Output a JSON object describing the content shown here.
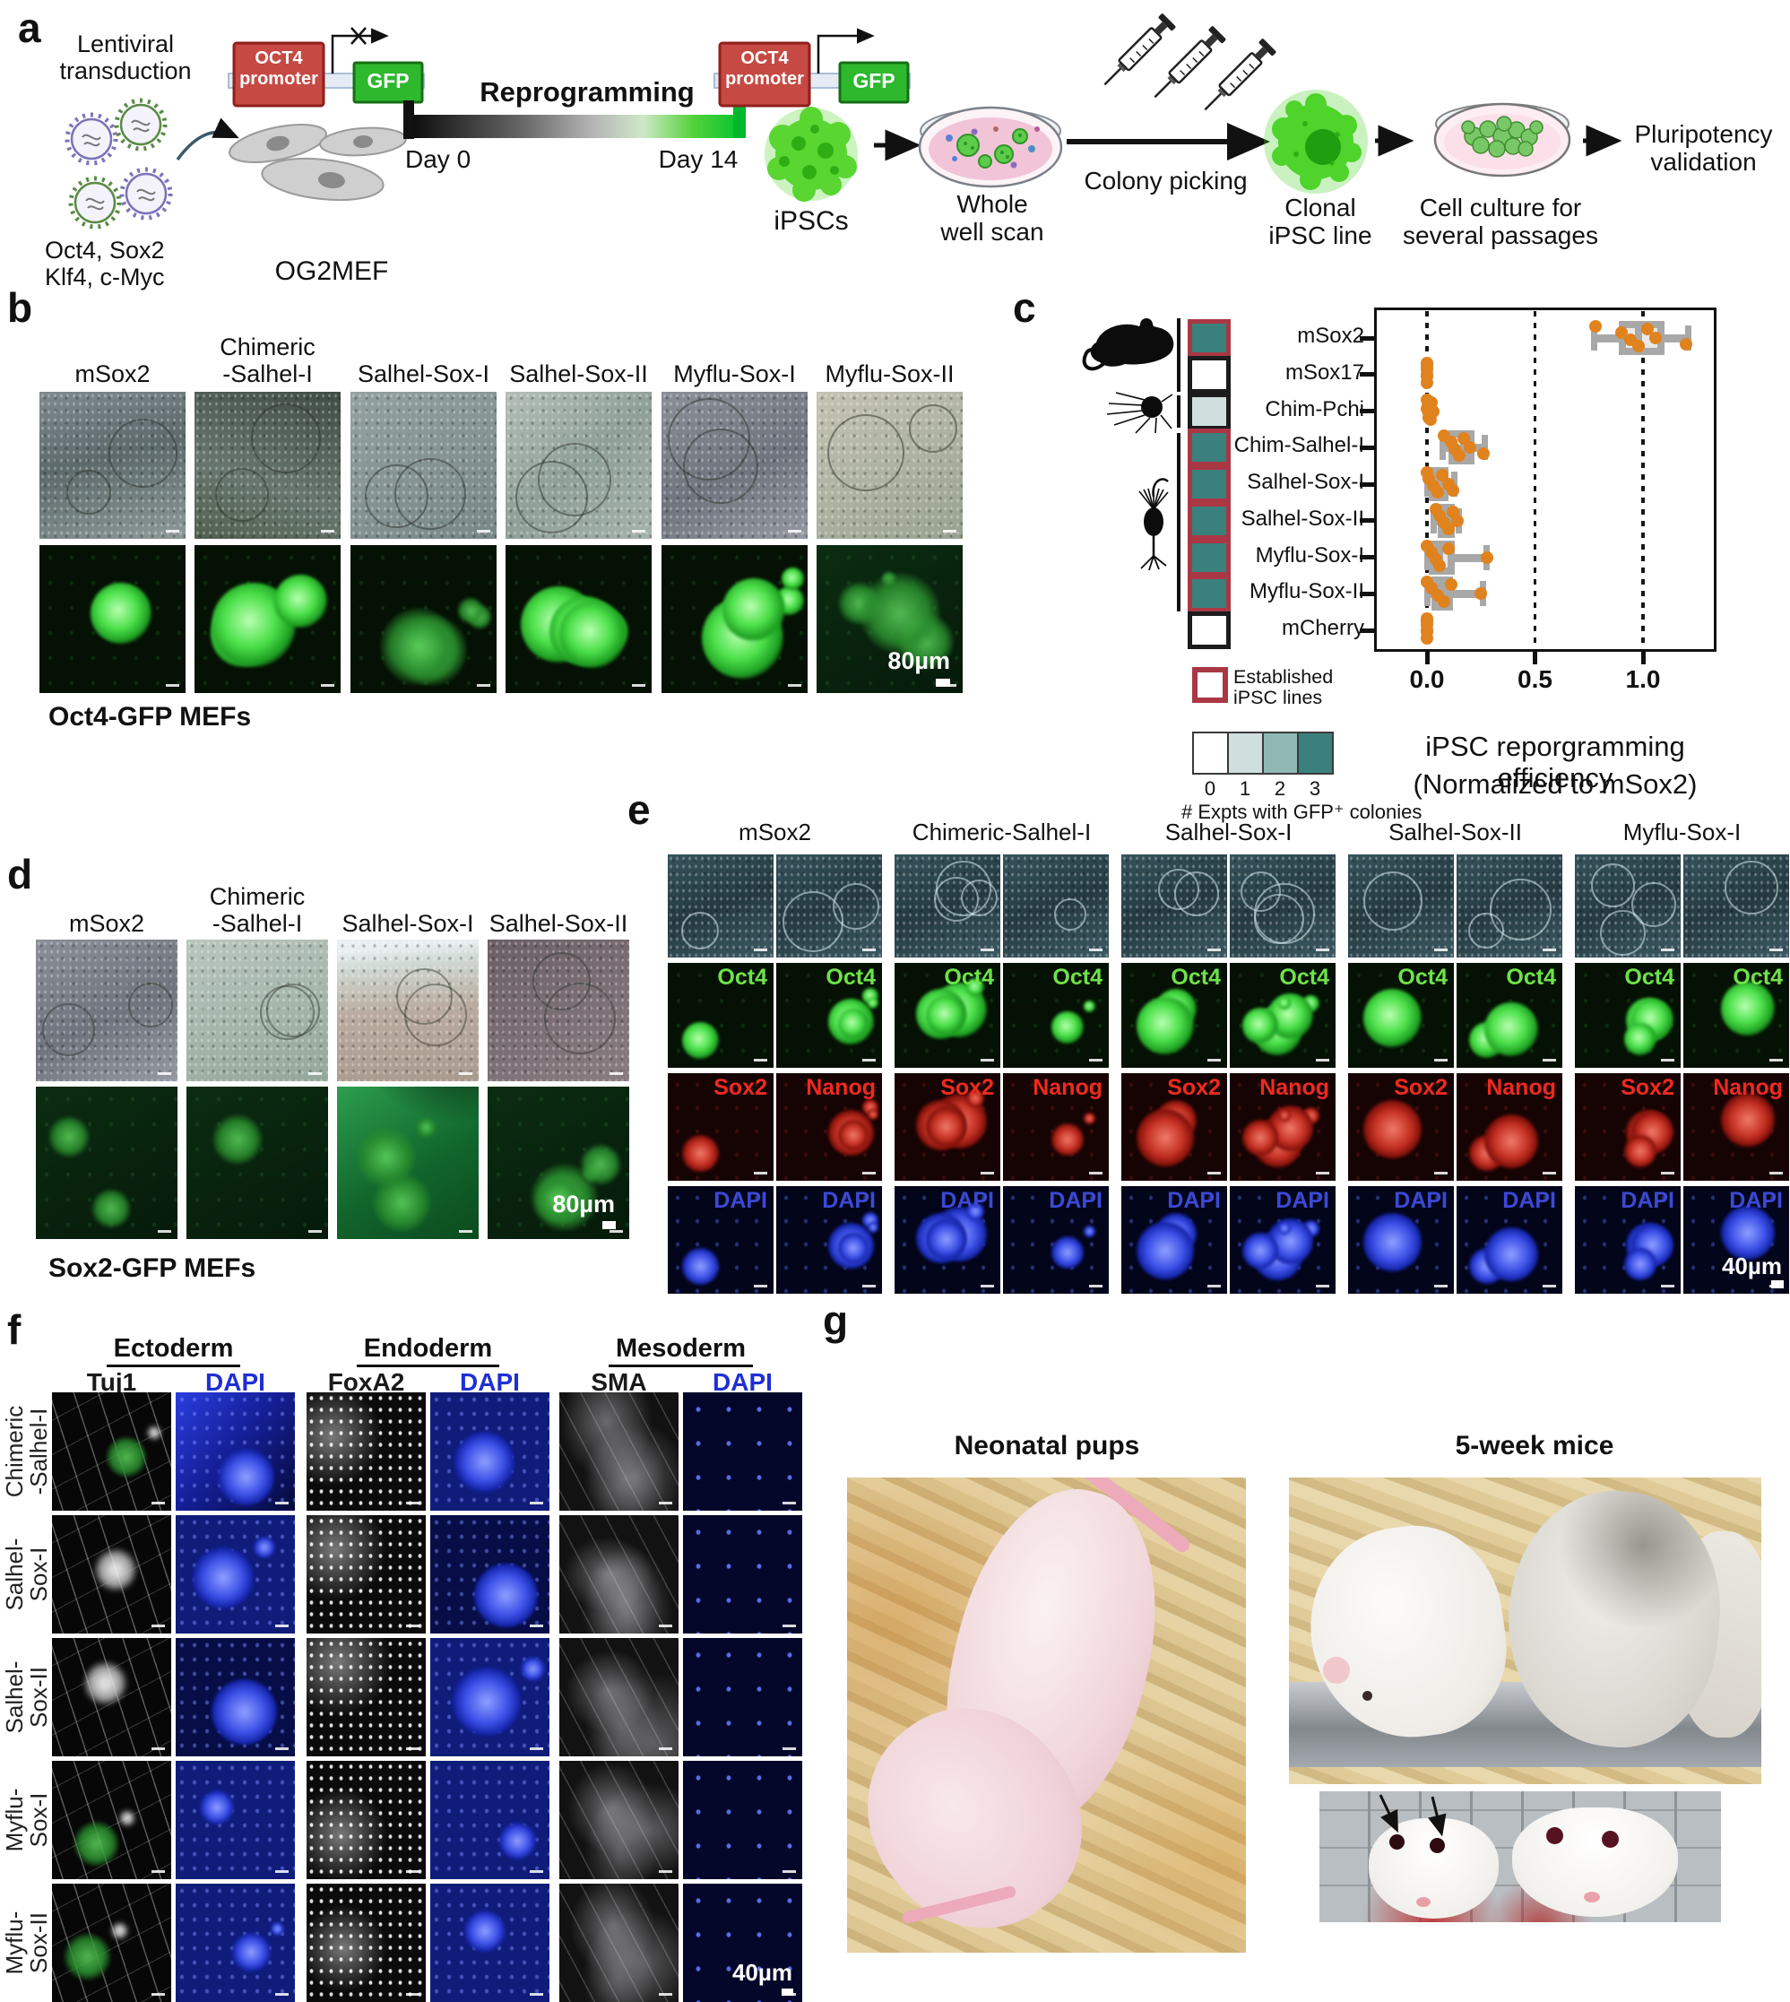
{
  "colors": {
    "gfp_green": "#2eb82e",
    "promoter_red": "#c64943",
    "established_red": "#a93844",
    "point_orange": "#e0821e",
    "box_gray": "#a8a8a8",
    "heatmap_scale": [
      "#ffffff",
      "#cfdfdd",
      "#8fb7b4",
      "#3a807c"
    ],
    "oct4_label": "#6ee24a",
    "red_label": "#ee2a20",
    "dapi_label": "#3c49d6"
  },
  "panel_a": {
    "label": "a",
    "lentiviral": "Lentiviral\ntransduction",
    "factors": "Oct4, Sox2\nKlf4, c-Myc",
    "construct1": {
      "promoter": "OCT4\npromoter",
      "gene": "GFP"
    },
    "construct2": {
      "promoter": "OCT4\npromoter",
      "gene": "GFP"
    },
    "og2mef": "OG2MEF",
    "reprogramming": "Reprogramming",
    "day0": "Day 0",
    "day14": "Day 14",
    "ipscs": "iPSCs",
    "whole_well": "Whole\nwell scan",
    "colony_picking": "Colony picking",
    "clonal": "Clonal\niPSC line",
    "culture": "Cell culture for\nseveral passages",
    "pluripotency": "Pluripotency\nvalidation"
  },
  "panel_b": {
    "label": "b",
    "columns": [
      "mSox2",
      "Chimeric\n-Salhel-I",
      "Salhel-Sox-I",
      "Salhel-Sox-II",
      "Myflu-Sox-I",
      "Myflu-Sox-II"
    ],
    "scale_bar": "80µm",
    "caption": "Oct4-GFP MEFs"
  },
  "panel_c": {
    "label": "c"
  },
  "chart_data": {
    "type": "box",
    "orientation": "horizontal",
    "xlabel": "iPSC reporgramming efficiency",
    "xlabel2": "(Normalized to mSox2)",
    "xticks": [
      "0.0",
      "0.5",
      "1.0"
    ],
    "xtick_values": [
      0,
      0.5,
      1
    ],
    "xlim": [
      -0.25,
      1.3
    ],
    "grid": "dotted-vertical",
    "categories": [
      "mSox2",
      "mSox17",
      "Chim-Pchi",
      "Chim-Salhel-I",
      "Salhel-Sox-I",
      "Salhel-Sox-II",
      "Myflu-Sox-I",
      "Myflu-Sox-II",
      "mCherry"
    ],
    "series": [
      {
        "cat": "mSox2",
        "box": {
          "min": 0.77,
          "q1": 0.89,
          "median": 0.98,
          "q3": 1.1,
          "max": 1.21
        },
        "points": [
          0.78,
          0.9,
          0.94,
          0.98,
          1.02,
          1.06,
          1.2
        ]
      },
      {
        "cat": "mSox17",
        "box": null,
        "points": [
          0,
          0,
          0,
          0,
          0,
          0
        ]
      },
      {
        "cat": "Chim-Pchi",
        "box": null,
        "points": [
          0,
          0.005,
          0.01,
          0.015,
          0.02,
          0.03,
          0.01,
          0
        ]
      },
      {
        "cat": "Chim-Salhel-I",
        "box": {
          "min": 0.07,
          "q1": 0.1,
          "median": 0.17,
          "q3": 0.22,
          "max": 0.27
        },
        "points": [
          0.08,
          0.11,
          0.13,
          0.15,
          0.17,
          0.2,
          0.26
        ]
      },
      {
        "cat": "Salhel-Sox-I",
        "box": {
          "min": 0,
          "q1": 0.01,
          "median": 0.05,
          "q3": 0.1,
          "max": 0.13
        },
        "points": [
          0,
          0.01,
          0.03,
          0.05,
          0.07,
          0.1,
          0.12
        ]
      },
      {
        "cat": "Salhel-Sox-II",
        "box": {
          "min": 0.03,
          "q1": 0.05,
          "median": 0.08,
          "q3": 0.13,
          "max": 0.15
        },
        "points": [
          0.04,
          0.06,
          0.08,
          0.1,
          0.12,
          0.14
        ]
      },
      {
        "cat": "Myflu-Sox-I",
        "box": {
          "min": 0,
          "q1": 0.01,
          "median": 0.06,
          "q3": 0.13,
          "max": 0.28
        },
        "points": [
          0,
          0.02,
          0.04,
          0.06,
          0.1,
          0.28
        ]
      },
      {
        "cat": "Myflu-Sox-II",
        "box": {
          "min": 0,
          "q1": 0.02,
          "median": 0.07,
          "q3": 0.12,
          "max": 0.26
        },
        "points": [
          0,
          0.02,
          0.05,
          0.08,
          0.11,
          0.25
        ]
      },
      {
        "cat": "mCherry",
        "box": null,
        "points": [
          0,
          0,
          0,
          0,
          0,
          0
        ]
      }
    ],
    "heatmap": {
      "values": [
        3,
        0,
        1,
        3,
        3,
        3,
        3,
        3,
        0
      ],
      "established": [
        true,
        false,
        false,
        true,
        true,
        true,
        true,
        true,
        false
      ]
    },
    "legend": {
      "established_label": "Established\niPSC lines",
      "scale_ticks": [
        "0",
        "1",
        "2",
        "3"
      ],
      "scale_caption": "# Expts with GFP⁺ colonies"
    }
  },
  "panel_d": {
    "label": "d",
    "columns": [
      "mSox2",
      "Chimeric\n-Salhel-I",
      "Salhel-Sox-I",
      "Salhel-Sox-II"
    ],
    "scale_bar": "80µm",
    "caption": "Sox2-GFP MEFs"
  },
  "panel_e": {
    "label": "e",
    "groups": [
      "mSox2",
      "Chimeric-Salhel-I",
      "Salhel-Sox-I",
      "Salhel-Sox-II",
      "Myflu-Sox-I"
    ],
    "markers": {
      "oct4": "Oct4",
      "sox2": "Sox2",
      "nanog": "Nanog",
      "dapi": "DAPI"
    },
    "scale_bar": "40µm"
  },
  "panel_f": {
    "label": "f",
    "germ_layers": [
      "Ectoderm",
      "Endoderm",
      "Mesoderm"
    ],
    "stains": [
      "Tuj1",
      "DAPI",
      "FoxA2",
      "DAPI",
      "SMA",
      "DAPI"
    ],
    "rows": [
      "Chimeric\n-Salhel-I",
      "Salhel-\nSox-I",
      "Salhel-\nSox-II",
      "Myflu-\nSox-I",
      "Myflu-\nSox-II"
    ],
    "scale_bar": "40µm"
  },
  "panel_g": {
    "label": "g",
    "left_title": "Neonatal pups",
    "right_title": "5-week mice"
  }
}
